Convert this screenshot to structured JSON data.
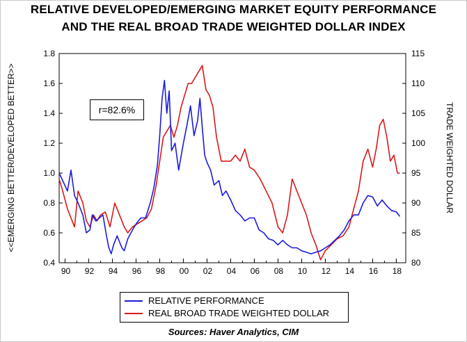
{
  "chart_data": {
    "type": "line",
    "title": "RELATIVE DEVELOPED/EMERGING MARKET EQUITY PERFORMANCE",
    "subtitle": "AND THE REAL BROAD TRADE WEIGHTED DOLLAR INDEX",
    "ylabel_left": "<<EMERGING BETTER/DEVELOPED BETTER>>",
    "ylabel_right": "TRADE WEIGHTED DOLLAR",
    "xlim": [
      1989.5,
      2018.8
    ],
    "ylim_left": [
      0.4,
      1.8
    ],
    "ylim_right": [
      80,
      115
    ],
    "x_tick_labels": [
      "90",
      "92",
      "94",
      "96",
      "98",
      "00",
      "02",
      "04",
      "06",
      "08",
      "10",
      "12",
      "14",
      "16",
      "18"
    ],
    "left_tick_labels": [
      "0.4",
      "0.6",
      "0.8",
      "1.0",
      "1.2",
      "1.4",
      "1.6",
      "1.8"
    ],
    "right_tick_labels": [
      "80",
      "85",
      "90",
      "95",
      "100",
      "105",
      "110",
      "115"
    ],
    "grid": false,
    "legend_position": "bottom",
    "annotation": "r=82.6%",
    "source": "Sources:  Haver Analytics, CIM",
    "series": [
      {
        "name": "RELATIVE PERFORMANCE",
        "axis": "left",
        "color": "#1a1adc",
        "x": [
          1989.5,
          1989.8,
          1990.2,
          1990.5,
          1990.8,
          1991.1,
          1991.5,
          1991.8,
          1992.1,
          1992.3,
          1992.6,
          1992.9,
          1993.2,
          1993.5,
          1993.7,
          1993.9,
          1994.1,
          1994.4,
          1994.8,
          1995.0,
          1995.3,
          1995.7,
          1996.0,
          1996.4,
          1996.8,
          1997.2,
          1997.5,
          1997.8,
          1998.0,
          1998.2,
          1998.4,
          1998.6,
          1998.8,
          1999.0,
          1999.3,
          1999.6,
          2000.0,
          2000.3,
          2000.6,
          2000.9,
          2001.2,
          2001.4,
          2001.6,
          2001.8,
          2002.0,
          2002.3,
          2002.6,
          2003.0,
          2003.3,
          2003.6,
          2004.0,
          2004.4,
          2004.8,
          2005.2,
          2005.6,
          2006.0,
          2006.4,
          2006.8,
          2007.2,
          2007.6,
          2008.0,
          2008.4,
          2008.8,
          2009.2,
          2009.6,
          2010.0,
          2010.4,
          2010.8,
          2011.2,
          2011.6,
          2012.0,
          2012.4,
          2012.8,
          2013.2,
          2013.6,
          2014.0,
          2014.4,
          2014.8,
          2015.2,
          2015.6,
          2016.0,
          2016.4,
          2016.8,
          2017.2,
          2017.6,
          2018.0,
          2018.3
        ],
        "values": [
          1.0,
          0.95,
          0.88,
          1.02,
          0.85,
          0.8,
          0.72,
          0.6,
          0.62,
          0.72,
          0.68,
          0.7,
          0.72,
          0.58,
          0.5,
          0.46,
          0.52,
          0.58,
          0.5,
          0.48,
          0.56,
          0.62,
          0.66,
          0.7,
          0.7,
          0.8,
          0.9,
          1.05,
          1.25,
          1.5,
          1.62,
          1.4,
          1.55,
          1.15,
          1.2,
          1.02,
          1.2,
          1.32,
          1.45,
          1.25,
          1.35,
          1.5,
          1.3,
          1.12,
          1.07,
          1.02,
          0.92,
          0.95,
          0.85,
          0.88,
          0.82,
          0.75,
          0.72,
          0.68,
          0.7,
          0.7,
          0.62,
          0.6,
          0.56,
          0.55,
          0.52,
          0.55,
          0.52,
          0.5,
          0.5,
          0.48,
          0.47,
          0.46,
          0.47,
          0.48,
          0.5,
          0.52,
          0.55,
          0.58,
          0.62,
          0.68,
          0.72,
          0.72,
          0.8,
          0.85,
          0.84,
          0.78,
          0.82,
          0.78,
          0.75,
          0.74,
          0.71
        ]
      },
      {
        "name": "REAL BROAD TRADE WEIGHTED DOLLAR",
        "axis": "right",
        "color": "#d81818",
        "x": [
          1989.5,
          1989.8,
          1990.2,
          1990.5,
          1990.8,
          1991.1,
          1991.5,
          1991.8,
          1992.1,
          1992.4,
          1992.7,
          1993.0,
          1993.4,
          1993.8,
          1994.2,
          1994.6,
          1995.0,
          1995.3,
          1995.7,
          1996.1,
          1996.5,
          1996.9,
          1997.3,
          1997.7,
          1998.0,
          1998.3,
          1998.6,
          1998.9,
          1999.2,
          1999.5,
          1999.8,
          2000.1,
          2000.4,
          2000.7,
          2001.0,
          2001.3,
          2001.6,
          2001.9,
          2002.2,
          2002.5,
          2002.8,
          2003.2,
          2003.6,
          2004.0,
          2004.4,
          2004.8,
          2005.2,
          2005.6,
          2006.0,
          2006.5,
          2007.0,
          2007.5,
          2008.0,
          2008.4,
          2008.8,
          2009.2,
          2009.6,
          2010.0,
          2010.4,
          2010.8,
          2011.2,
          2011.6,
          2012.0,
          2012.5,
          2013.0,
          2013.5,
          2014.0,
          2014.4,
          2014.8,
          2015.2,
          2015.6,
          2016.0,
          2016.3,
          2016.6,
          2016.9,
          2017.2,
          2017.5,
          2017.8,
          2018.1,
          2018.3
        ],
        "values": [
          94,
          92,
          89,
          87.5,
          86,
          92,
          90,
          87,
          86,
          88,
          87,
          88,
          88.5,
          86,
          90,
          88,
          86,
          85,
          86,
          86.5,
          87,
          87.5,
          89,
          93,
          97,
          101,
          102,
          103,
          101,
          103,
          106,
          108,
          110,
          110,
          111,
          112,
          113,
          109,
          108,
          106,
          101,
          97,
          97,
          97,
          98,
          97,
          99,
          96,
          95.5,
          94,
          92,
          90,
          86,
          85,
          88,
          94,
          92,
          90,
          88,
          85,
          83,
          80.5,
          82,
          83,
          84,
          84.5,
          86,
          89,
          92,
          97,
          99,
          96,
          99,
          103,
          104,
          101,
          97,
          98,
          95,
          95
        ]
      }
    ]
  }
}
